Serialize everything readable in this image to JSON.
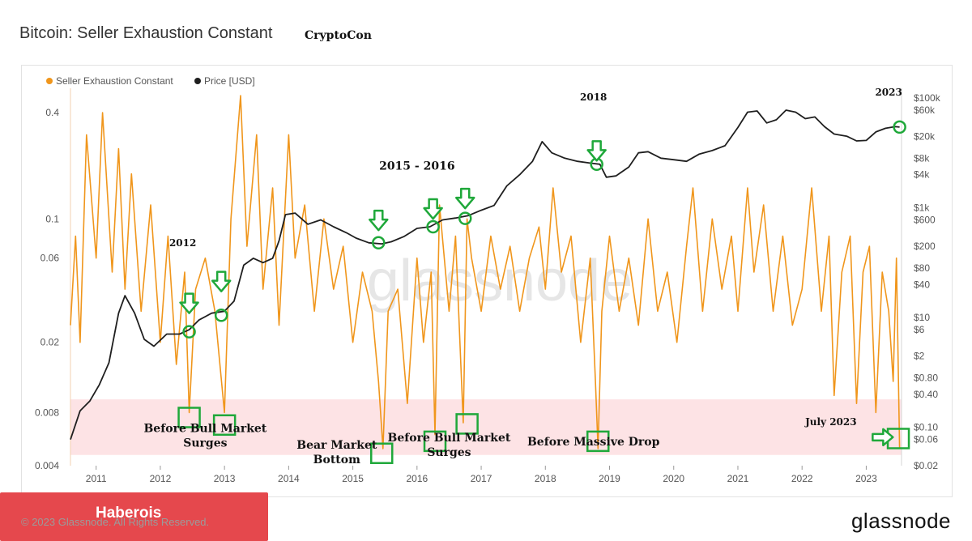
{
  "header": {
    "title": "Bitcoin: Seller Exhaustion Constant",
    "author": "CryptoCon"
  },
  "footer": {
    "banner": "Haberois",
    "copyright": "© 2023 Glassnode. All Rights Reserved.",
    "brand": "glassnode"
  },
  "watermark": "glassnode",
  "colors": {
    "sec": "#f0961c",
    "price": "#1f1f1f",
    "marker": "#1fa83a",
    "zone": "#fcd9dc"
  },
  "chart_data": {
    "type": "line",
    "legend": {
      "placement": "top-left",
      "entries": [
        "Seller Exhaustion Constant",
        "Price [USD]"
      ]
    },
    "x_ticks": [
      "2011",
      "2012",
      "2013",
      "2014",
      "2015",
      "2016",
      "2017",
      "2018",
      "2019",
      "2020",
      "2021",
      "2022",
      "2023"
    ],
    "xlim": [
      2010.6,
      2023.55
    ],
    "y_left": {
      "scale": "log",
      "ticks": [
        "0.4",
        "0.1",
        "0.06",
        "0.02",
        "0.008",
        "0.004"
      ],
      "range": [
        0.004,
        0.55
      ]
    },
    "y_right": {
      "scale": "log",
      "ticks": [
        "$100k",
        "$60k",
        "$20k",
        "$8k",
        "$4k",
        "$1k",
        "$600",
        "$200",
        "$80",
        "$40",
        "$10",
        "$6",
        "$2",
        "$0.80",
        "$0.40",
        "$0.10",
        "$0.06",
        "$0.02"
      ],
      "range": [
        0.02,
        150000
      ]
    },
    "zone": {
      "low": 0.0046,
      "high": 0.0095
    },
    "series": [
      {
        "name": "Price [USD]",
        "x": [
          2010.6,
          2010.75,
          2010.9,
          2011.05,
          2011.2,
          2011.35,
          2011.45,
          2011.6,
          2011.75,
          2011.9,
          2012.1,
          2012.3,
          2012.45,
          2012.6,
          2012.8,
          2013.0,
          2013.15,
          2013.3,
          2013.45,
          2013.6,
          2013.75,
          2013.85,
          2013.95,
          2014.1,
          2014.3,
          2014.5,
          2014.7,
          2014.9,
          2015.05,
          2015.25,
          2015.45,
          2015.6,
          2015.8,
          2016.0,
          2016.2,
          2016.4,
          2016.6,
          2016.8,
          2017.0,
          2017.2,
          2017.4,
          2017.6,
          2017.8,
          2017.95,
          2018.1,
          2018.3,
          2018.5,
          2018.7,
          2018.85,
          2018.95,
          2019.1,
          2019.3,
          2019.45,
          2019.6,
          2019.8,
          2020.0,
          2020.2,
          2020.4,
          2020.6,
          2020.8,
          2021.0,
          2021.15,
          2021.3,
          2021.45,
          2021.6,
          2021.75,
          2021.9,
          2022.05,
          2022.2,
          2022.35,
          2022.5,
          2022.7,
          2022.85,
          2023.0,
          2023.15,
          2023.3,
          2023.45,
          2023.52
        ],
        "values": [
          0.06,
          0.2,
          0.3,
          0.6,
          1.5,
          12,
          25,
          12,
          4,
          3,
          5,
          5,
          6,
          9,
          12,
          13,
          20,
          90,
          120,
          100,
          120,
          250,
          750,
          800,
          500,
          600,
          450,
          350,
          280,
          230,
          220,
          240,
          300,
          420,
          450,
          600,
          650,
          720,
          900,
          1100,
          2500,
          4000,
          7000,
          16000,
          10000,
          8000,
          7000,
          6500,
          6200,
          3600,
          3800,
          5500,
          10000,
          10500,
          8000,
          7500,
          7000,
          9500,
          11000,
          13500,
          29000,
          55000,
          58000,
          35000,
          40000,
          60000,
          55000,
          42000,
          45000,
          30000,
          22000,
          20000,
          16500,
          16800,
          24000,
          28000,
          30000,
          29500
        ],
        "color": "#1f1f1f"
      },
      {
        "name": "Seller Exhaustion Constant",
        "x": [
          2010.6,
          2010.68,
          2010.75,
          2010.85,
          2011.0,
          2011.1,
          2011.25,
          2011.35,
          2011.45,
          2011.55,
          2011.7,
          2011.85,
          2012.0,
          2012.12,
          2012.25,
          2012.38,
          2012.45,
          2012.55,
          2012.7,
          2012.85,
          2013.0,
          2013.1,
          2013.25,
          2013.35,
          2013.5,
          2013.6,
          2013.75,
          2013.85,
          2014.0,
          2014.1,
          2014.25,
          2014.4,
          2014.55,
          2014.7,
          2014.85,
          2015.0,
          2015.15,
          2015.3,
          2015.4,
          2015.47,
          2015.55,
          2015.7,
          2015.85,
          2016.0,
          2016.1,
          2016.22,
          2016.28,
          2016.35,
          2016.5,
          2016.6,
          2016.72,
          2016.78,
          2016.85,
          2017.0,
          2017.15,
          2017.3,
          2017.45,
          2017.6,
          2017.75,
          2017.9,
          2018.0,
          2018.12,
          2018.25,
          2018.4,
          2018.55,
          2018.7,
          2018.78,
          2018.82,
          2018.88,
          2019.0,
          2019.15,
          2019.3,
          2019.45,
          2019.6,
          2019.75,
          2019.9,
          2020.05,
          2020.2,
          2020.3,
          2020.45,
          2020.6,
          2020.75,
          2020.9,
          2021.0,
          2021.15,
          2021.25,
          2021.4,
          2021.55,
          2021.7,
          2021.85,
          2022.0,
          2022.15,
          2022.3,
          2022.42,
          2022.5,
          2022.62,
          2022.75,
          2022.85,
          2022.95,
          2023.05,
          2023.15,
          2023.25,
          2023.35,
          2023.42,
          2023.47,
          2023.52
        ],
        "values": [
          0.025,
          0.08,
          0.02,
          0.3,
          0.06,
          0.4,
          0.05,
          0.25,
          0.04,
          0.18,
          0.03,
          0.12,
          0.02,
          0.08,
          0.015,
          0.05,
          0.008,
          0.04,
          0.06,
          0.03,
          0.008,
          0.1,
          0.5,
          0.07,
          0.3,
          0.04,
          0.15,
          0.025,
          0.3,
          0.06,
          0.12,
          0.03,
          0.1,
          0.04,
          0.07,
          0.02,
          0.05,
          0.03,
          0.012,
          0.005,
          0.03,
          0.04,
          0.009,
          0.06,
          0.02,
          0.05,
          0.006,
          0.12,
          0.03,
          0.08,
          0.007,
          0.1,
          0.06,
          0.03,
          0.08,
          0.04,
          0.07,
          0.03,
          0.06,
          0.09,
          0.04,
          0.15,
          0.05,
          0.08,
          0.02,
          0.06,
          0.012,
          0.005,
          0.03,
          0.08,
          0.03,
          0.06,
          0.025,
          0.1,
          0.03,
          0.05,
          0.02,
          0.07,
          0.15,
          0.03,
          0.1,
          0.04,
          0.08,
          0.03,
          0.15,
          0.05,
          0.12,
          0.03,
          0.08,
          0.025,
          0.04,
          0.15,
          0.03,
          0.08,
          0.01,
          0.05,
          0.08,
          0.009,
          0.05,
          0.07,
          0.008,
          0.05,
          0.03,
          0.012,
          0.06,
          0.005
        ],
        "color": "#f0961c"
      }
    ],
    "annotations": [
      {
        "label": "2012",
        "x": 2012.35,
        "value": 0.07
      },
      {
        "label": "2015 - 2016",
        "x": 2016.0,
        "value": 0.19
      },
      {
        "label": "2018",
        "x": 2018.75,
        "value": 0.47
      },
      {
        "label": "2023",
        "x": 2023.35,
        "value": 0.5
      },
      {
        "label": "Before Bull Market Surges",
        "x": 2012.7,
        "value": 0.0062
      },
      {
        "label": "Bear Market Bottom",
        "x": 2014.75,
        "value": 0.005
      },
      {
        "label": "Before Bull Market Surges",
        "x": 2016.5,
        "value": 0.0055
      },
      {
        "label": "Before Massive Drop",
        "x": 2018.75,
        "value": 0.0052
      },
      {
        "label": "July 2023",
        "x": 2022.45,
        "value": 0.0068
      }
    ],
    "markers": {
      "arrows_down": [
        {
          "x": 2012.45,
          "price": 8
        },
        {
          "x": 2012.95,
          "price": 20
        },
        {
          "x": 2015.4,
          "price": 260
        },
        {
          "x": 2016.25,
          "price": 420
        },
        {
          "x": 2016.75,
          "price": 650
        },
        {
          "x": 2018.8,
          "price": 4800
        }
      ],
      "circles": [
        {
          "x": 2012.45,
          "price": 5.5
        },
        {
          "x": 2012.95,
          "price": 11
        },
        {
          "x": 2015.4,
          "price": 230
        },
        {
          "x": 2016.25,
          "price": 450
        },
        {
          "x": 2016.75,
          "price": 640
        },
        {
          "x": 2018.8,
          "price": 6200
        },
        {
          "x": 2023.52,
          "price": 29500
        }
      ],
      "boxes": [
        {
          "x": 2012.45,
          "value": 0.0075
        },
        {
          "x": 2013.0,
          "value": 0.0068
        },
        {
          "x": 2015.45,
          "value": 0.0047
        },
        {
          "x": 2016.28,
          "value": 0.0055
        },
        {
          "x": 2016.78,
          "value": 0.0069
        },
        {
          "x": 2018.82,
          "value": 0.0055
        },
        {
          "x": 2023.5,
          "value": 0.0057
        }
      ],
      "arrow_right": {
        "x": 2023.1,
        "value": 0.0058
      }
    }
  }
}
